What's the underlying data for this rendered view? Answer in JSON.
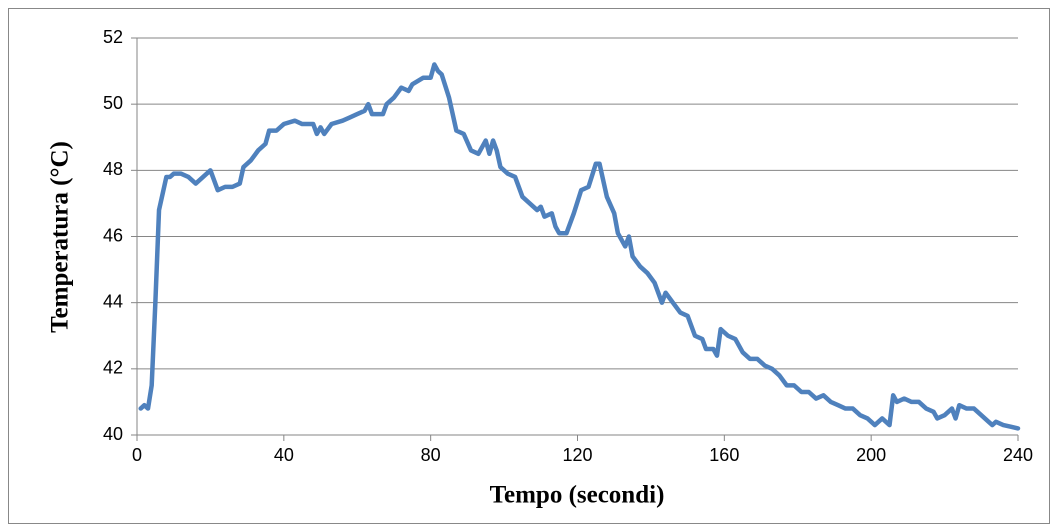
{
  "chart_data": {
    "type": "line",
    "x_label": "Tempo (secondi)",
    "y_label": "Temperatura (°C)",
    "xlim": [
      0,
      240
    ],
    "xticks": [
      0,
      40,
      80,
      120,
      160,
      200,
      240
    ],
    "ylim": [
      40,
      52
    ],
    "yticks": [
      40,
      42,
      44,
      46,
      48,
      50,
      52
    ],
    "grid": true,
    "color": "#4f81bd",
    "x": [
      1,
      2,
      3,
      4,
      5,
      6,
      7,
      8,
      9,
      10,
      12,
      14,
      16,
      18,
      20,
      21,
      22,
      24,
      26,
      28,
      29,
      31,
      33,
      35,
      36,
      38,
      40,
      43,
      45,
      48,
      49,
      50,
      51,
      53,
      56,
      58,
      60,
      62,
      63,
      64,
      67,
      68,
      70,
      72,
      74,
      75,
      78,
      80,
      81,
      82,
      83,
      85,
      87,
      89,
      91,
      93,
      95,
      96,
      97,
      98,
      99,
      101,
      103,
      105,
      107,
      109,
      110,
      111,
      113,
      114,
      115,
      117,
      119,
      121,
      123,
      125,
      126,
      128,
      130,
      131,
      133,
      134,
      135,
      137,
      139,
      141,
      143,
      144,
      146,
      148,
      150,
      152,
      154,
      155,
      157,
      158,
      159,
      161,
      163,
      165,
      167,
      169,
      171,
      173,
      175,
      177,
      179,
      181,
      183,
      185,
      187,
      189,
      191,
      193,
      195,
      197,
      199,
      201,
      203,
      205,
      206,
      207,
      209,
      211,
      213,
      215,
      217,
      218,
      220,
      222,
      223,
      224,
      226,
      228,
      230,
      232,
      233,
      234,
      236,
      238,
      240
    ],
    "values": [
      40.8,
      40.9,
      40.8,
      41.5,
      44,
      46.8,
      47.3,
      47.8,
      47.8,
      47.9,
      47.9,
      47.8,
      47.6,
      47.8,
      48.0,
      47.7,
      47.4,
      47.5,
      47.5,
      47.6,
      48.1,
      48.3,
      48.6,
      48.8,
      49.2,
      49.2,
      49.4,
      49.5,
      49.4,
      49.4,
      49.1,
      49.3,
      49.1,
      49.4,
      49.5,
      49.6,
      49.7,
      49.8,
      50.0,
      49.7,
      49.7,
      50.0,
      50.2,
      50.5,
      50.4,
      50.6,
      50.8,
      50.8,
      51.2,
      51.0,
      50.9,
      50.2,
      49.2,
      49.1,
      48.6,
      48.5,
      48.9,
      48.5,
      48.9,
      48.6,
      48.1,
      47.9,
      47.8,
      47.2,
      47.0,
      46.8,
      46.9,
      46.6,
      46.7,
      46.3,
      46.1,
      46.1,
      46.7,
      47.4,
      47.5,
      48.2,
      48.2,
      47.2,
      46.7,
      46.1,
      45.7,
      46.0,
      45.4,
      45.1,
      44.9,
      44.6,
      44.0,
      44.3,
      44.0,
      43.7,
      43.6,
      43.0,
      42.9,
      42.6,
      42.6,
      42.4,
      43.2,
      43.0,
      42.9,
      42.5,
      42.3,
      42.3,
      42.1,
      42.0,
      41.8,
      41.5,
      41.5,
      41.3,
      41.3,
      41.1,
      41.2,
      41.0,
      40.9,
      40.8,
      40.8,
      40.6,
      40.5,
      40.3,
      40.5,
      40.3,
      41.2,
      41.0,
      41.1,
      41.0,
      41.0,
      40.8,
      40.7,
      40.5,
      40.6,
      40.8,
      40.5,
      40.9,
      40.8,
      40.8,
      40.6,
      40.4,
      40.3,
      40.4,
      40.3,
      40.25,
      40.2
    ]
  }
}
